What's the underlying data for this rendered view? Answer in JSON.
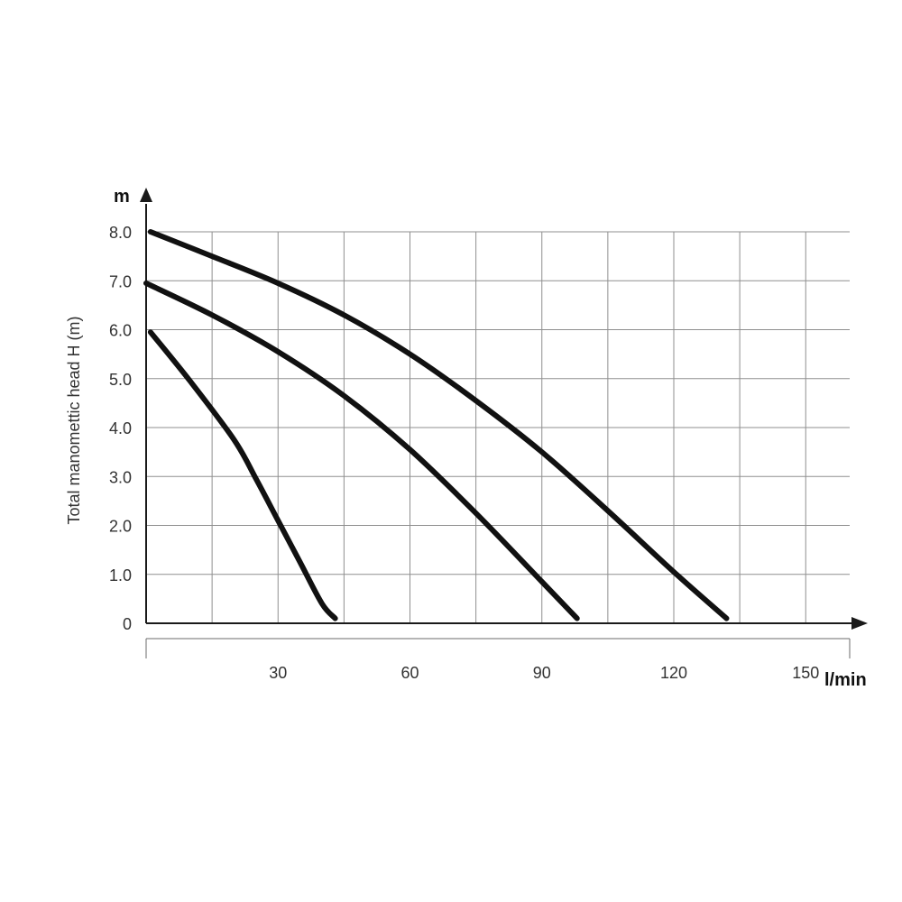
{
  "chart_data": {
    "type": "line",
    "title": "",
    "xlabel": "l/min",
    "ylabel": "Total manomettic head H (m)",
    "y_unit": "m",
    "xlim": [
      0,
      160
    ],
    "ylim": [
      0,
      8
    ],
    "x_ticks": [
      "30",
      "60",
      "90",
      "120",
      "150"
    ],
    "x_tick_values": [
      30,
      60,
      90,
      120,
      150
    ],
    "y_ticks": [
      "0",
      "1.0",
      "2.0",
      "3.0",
      "4.0",
      "5.0",
      "6.0",
      "7.0",
      "8.0"
    ],
    "y_tick_values": [
      0,
      1,
      2,
      3,
      4,
      5,
      6,
      7,
      8
    ],
    "grid": true,
    "legend": "none",
    "series": [
      {
        "x": [
          1,
          10,
          20,
          25,
          30,
          35,
          40,
          43
        ],
        "y": [
          5.95,
          4.95,
          3.75,
          2.95,
          2.1,
          1.25,
          0.4,
          0.1
        ]
      },
      {
        "x": [
          0,
          15,
          30,
          45,
          60,
          75,
          90,
          98
        ],
        "y": [
          6.95,
          6.3,
          5.55,
          4.65,
          3.55,
          2.25,
          0.85,
          0.1
        ]
      },
      {
        "x": [
          1,
          15,
          30,
          45,
          60,
          75,
          90,
          105,
          120,
          132
        ],
        "y": [
          8.0,
          7.5,
          6.95,
          6.3,
          5.5,
          4.55,
          3.5,
          2.3,
          1.05,
          0.1
        ]
      }
    ],
    "colors": {
      "curve": "#111111",
      "grid": "#8f8f8f",
      "axis": "#1a1a1a",
      "text": "#333333"
    }
  }
}
